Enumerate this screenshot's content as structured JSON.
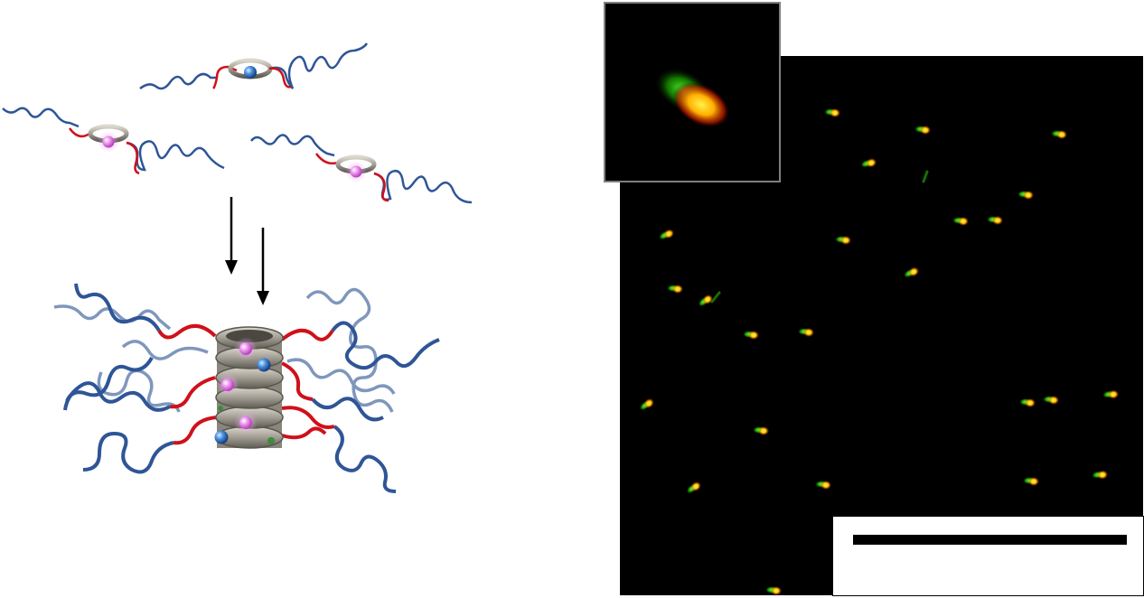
{
  "colors": {
    "chain_blue": "#2f5597",
    "chain_blue_light": "#7f97bd",
    "linker_red": "#d0101a",
    "ring_silver": "#a8a499",
    "bead_blue": "#3d7fd0",
    "bead_pink": "#e47ae6",
    "spot_red": "#ff2a00",
    "spot_yellow": "#ffe600",
    "spot_green": "#36d400"
  },
  "icons": {
    "arrow": "down-arrow-icon",
    "monomer": "rotaxane-monomer-icon",
    "assembly": "stacked-ring-assembly-icon",
    "spot": "fluorescent-spot-icon"
  }
}
